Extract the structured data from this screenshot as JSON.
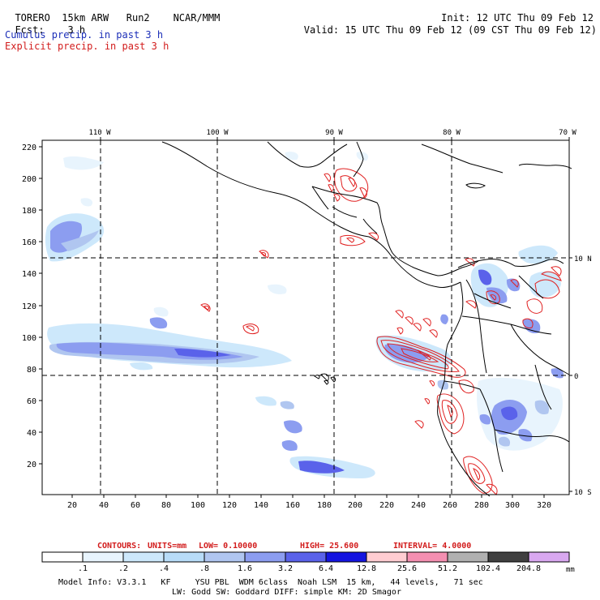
{
  "header": {
    "model": "TORERO",
    "resolution": "15km ARW",
    "run": "Run2",
    "org": "NCAR/MMM",
    "init_label": "Init:",
    "init_value": "12 UTC Thu 09 Feb 12",
    "fcst_label": "Fcst:",
    "fcst_value": "3 h",
    "valid_label": "Valid:",
    "valid_value": "15 UTC Thu 09 Feb 12 (09 CST Thu 09 Feb 12)"
  },
  "legend_lines": {
    "cumulus": "Cumulus precip. in past 3 h",
    "explicit": "Explicit precip. in past 3 h"
  },
  "map": {
    "lon_labels": [
      "110 W",
      "100 W",
      "90 W",
      "80 W",
      "70 W"
    ],
    "lat_labels": [
      "10 N",
      "0",
      "10 S"
    ],
    "y_ticks": [
      "220",
      "200",
      "180",
      "160",
      "140",
      "120",
      "100",
      "80",
      "60",
      "40",
      "20"
    ],
    "x_ticks": [
      "20",
      "40",
      "60",
      "80",
      "100",
      "120",
      "140",
      "160",
      "180",
      "200",
      "220",
      "240",
      "260",
      "280",
      "300",
      "320"
    ]
  },
  "contours": {
    "label": "CONTOURS:",
    "units": "UNITS=mm",
    "low": "LOW= 0.10000",
    "high": "HIGH= 25.600",
    "interval": "INTERVAL= 4.0000"
  },
  "colorbar": {
    "labels": [
      ".1",
      ".2",
      ".4",
      ".8",
      "1.6",
      "3.2",
      "6.4",
      "12.8",
      "25.6",
      "51.2",
      "102.4",
      "204.8"
    ],
    "unit": "mm",
    "colors": [
      "#ffffff",
      "#e8f4fd",
      "#cde8fb",
      "#b8dcf8",
      "#b0c6f0",
      "#8c9df0",
      "#5a62ea",
      "#1414e0",
      "#ffcdd2",
      "#f48fb1",
      "#b0b0b0",
      "#404040",
      "#d9a8f0"
    ]
  },
  "footer": {
    "line1": "Model Info: V3.3.1   KF     YSU PBL  WDM 6class  Noah LSM  15 km,   44 levels,   71 sec",
    "line2": "LW: Godd SW: Goddard DIFF: simple KM: 2D Smagor"
  }
}
